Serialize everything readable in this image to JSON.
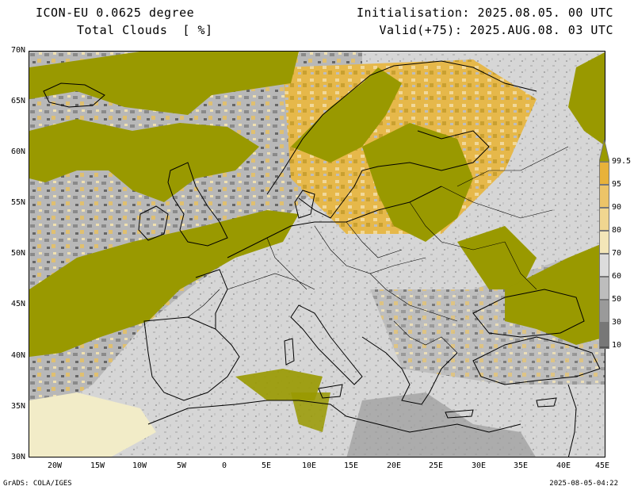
{
  "header": {
    "model": "ICON-EU 0.0625 degree",
    "field": "Total Clouds  [ %]",
    "initialisation": "Initialisation: 2025.08.05. 00 UTC",
    "valid": "Valid(+75): 2025.AUG.08. 03 UTC"
  },
  "axes": {
    "lat_labels": [
      "70N",
      "65N",
      "60N",
      "55N",
      "50N",
      "45N",
      "40N",
      "35N",
      "30N"
    ],
    "lon_labels": [
      "20W",
      "15W",
      "10W",
      "5W",
      "0",
      "5E",
      "10E",
      "15E",
      "20E",
      "25E",
      "30E",
      "35E",
      "40E",
      "45E"
    ],
    "lat_range": [
      30,
      70
    ],
    "lon_range": [
      -23,
      45
    ]
  },
  "colorbar": {
    "labels": [
      "99.5",
      "95",
      "90",
      "80",
      "70",
      "60",
      "50",
      "30",
      "10"
    ],
    "colors": [
      "#e8b23a",
      "#ecc468",
      "#f0d690",
      "#f3e6b8",
      "#f5f2d8",
      "#dcdcdc",
      "#bdbdbd",
      "#9a9a9a",
      "#777777",
      "#555555"
    ],
    "top_color": "#9a9a00"
  },
  "colors": {
    "overcast": "#999900",
    "clear": "#dcdcdc",
    "coast": "#000000"
  },
  "footer": {
    "left": "GrADS: COLA/IGES",
    "right": "2025-08-05-04:22"
  }
}
